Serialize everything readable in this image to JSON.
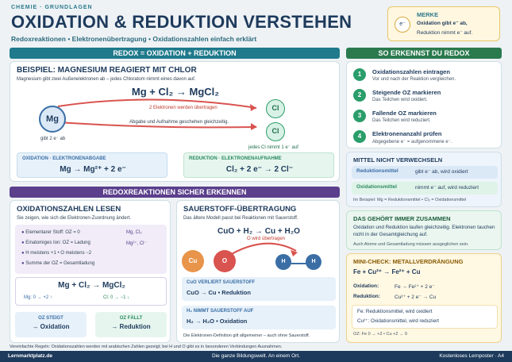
{
  "header": {
    "kicker": "CHEMIE · GRUNDLAGEN",
    "title": "OXIDATION & REDUKTION VERSTEHEN",
    "subtitle": "Redoxreaktionen • Elektronenübertragung • Oxidationszahlen einfach erklärt"
  },
  "merke": {
    "symbol": "e⁻",
    "title": "MERKE",
    "line1": "Oxidation gibt e⁻ ab,",
    "line2": "Reduktion nimmt e⁻ auf."
  },
  "band1": "REDOX = OXIDATION + REDUKTION",
  "example": {
    "title": "BEISPIEL: MAGNESIUM REAGIERT MIT CHLOR",
    "desc": "Magnesium gibt zwei Außenelektronen ab – jedes Chloratom nimmt eines davon auf.",
    "equation": "Mg + Cl₂ → MgCl₂",
    "mg": "Mg",
    "cl1": "Cl",
    "cl2": "Cl",
    "arrow_label": "2 Elektronen werden übertragen",
    "mid_note": "Abgabe und Aufnahme geschehen gleichzeitig.",
    "mg_note": "gibt 2 e⁻ ab",
    "cl_note": "jedes Cl nimmt 1 e⁻ auf",
    "ox_title": "OXIDATION · ELEKTRONENABGABE",
    "ox_eq": "Mg → Mg²⁺ + 2 e⁻",
    "red_title": "REDUKTION · ELEKTRONENAUFNAHME",
    "red_eq": "Cl₂ + 2 e⁻ → 2 Cl⁻"
  },
  "band2": "REDOXREAKTIONEN SICHER ERKENNEN",
  "oz": {
    "title": "OXIDATIONSZAHLEN LESEN",
    "desc": "Sie zeigen, wie sich die Elektronen-Zuordnung ändert.",
    "rules": [
      {
        "text": "Elementarer Stoff: OZ = 0",
        "ex": "Mg, Cl₂"
      },
      {
        "text": "Einatomiges Ion: OZ = Ladung",
        "ex": "Mg²⁺, Cl⁻"
      },
      {
        "text": "H meistens +1 • O meistens −2",
        "ex": ""
      },
      {
        "text": "Summe der OZ = Gesamtladung",
        "ex": ""
      }
    ],
    "equation": "Mg + Cl₂ → MgCl₂",
    "mg_change": "Mg: 0 → +2 ↑",
    "cl_change": "Cl: 0 → −1 ↓",
    "up_title": "OZ STEIGT",
    "up_val": "→ Oxidation",
    "down_title": "OZ FÄLLT",
    "down_val": "→ Reduktion"
  },
  "oxy": {
    "title": "SAUERSTOFF-ÜBERTRAGUNG",
    "desc": "Das ältere Modell passt bei Reaktionen mit Sauerstoff.",
    "equation": "CuO + H₂ → Cu + H₂O",
    "o_note": "O wird übertragen",
    "cu": "Cu",
    "o": "O",
    "h1": "H",
    "h2": "H",
    "b1_title": "CuO VERLIERT SAUERSTOFF",
    "b1_val": "CuO → Cu • Reduktion",
    "b2_title": "H₂ NIMMT SAUERSTOFF AUF",
    "b2_val": "H₂ → H₂O • Oxidation",
    "note": "Die Elektronen-Definition gilt allgemeiner – auch ohne Sauerstoff."
  },
  "right": {
    "band": "SO ERKENNST DU REDOX",
    "steps": [
      {
        "n": "1",
        "t": "Oxidationszahlen eintragen",
        "s": "Vor und nach der Reaktion vergleichen."
      },
      {
        "n": "2",
        "t": "Steigende OZ markieren",
        "s": "Das Teilchen wird oxidiert."
      },
      {
        "n": "3",
        "t": "Fallende OZ markieren",
        "s": "Das Teilchen wird reduziert."
      },
      {
        "n": "4",
        "t": "Elektronenanzahl prüfen",
        "s": "Abgegebene e⁻ = aufgenommene e⁻."
      }
    ],
    "confuse_title": "MITTEL NICHT VERWECHSELN",
    "red_agent": "Reduktionsmittel",
    "red_agent_d": "gibt e⁻ ab, wird oxidiert",
    "ox_agent": "Oxidationsmittel",
    "ox_agent_d": "nimmt e⁻ auf, wird reduziert",
    "confuse_ex": "Im Beispiel: Mg = Reduktionsmittel • Cl₂ = Oxidationsmittel",
    "together_title": "DAS GEHÖRT IMMER ZUSAMMEN",
    "together_text": "Oxidation und Reduktion laufen gleichzeitig. Elektronen tauchen nicht in der Gesamtgleichung auf.",
    "together_note": "Auch Atome und Gesamtladung müssen ausgeglichen sein.",
    "check_title": "MINI-CHECK: METALLVERDRÄNGUNG",
    "check_eq": "Fe + Cu²⁺ → Fe²⁺ + Cu",
    "check_ox_l": "Oxidation:",
    "check_ox": "Fe → Fe²⁺ + 2 e⁻",
    "check_red_l": "Reduktion:",
    "check_red": "Cu²⁺ + 2 e⁻ → Cu",
    "check_a1": "Fe: Reduktionsmittel, wird oxidiert",
    "check_a2": "Cu²⁺: Oxidationsmittel, wird reduziert",
    "check_oz": "OZ: Fe 0 → +2 • Cu +2 → 0"
  },
  "footnote": "Vereinfachte Regeln: Oxidationszahlen werden mit arabischen Zahlen gezeigt; bei H und O gibt es in besonderen Verbindungen Ausnahmen.",
  "footer": {
    "left": "Lernmarktplatz.de",
    "center": "Die ganze Bildungswelt. An einem Ort.",
    "right": "Kostenloses Lernposter · A4"
  }
}
